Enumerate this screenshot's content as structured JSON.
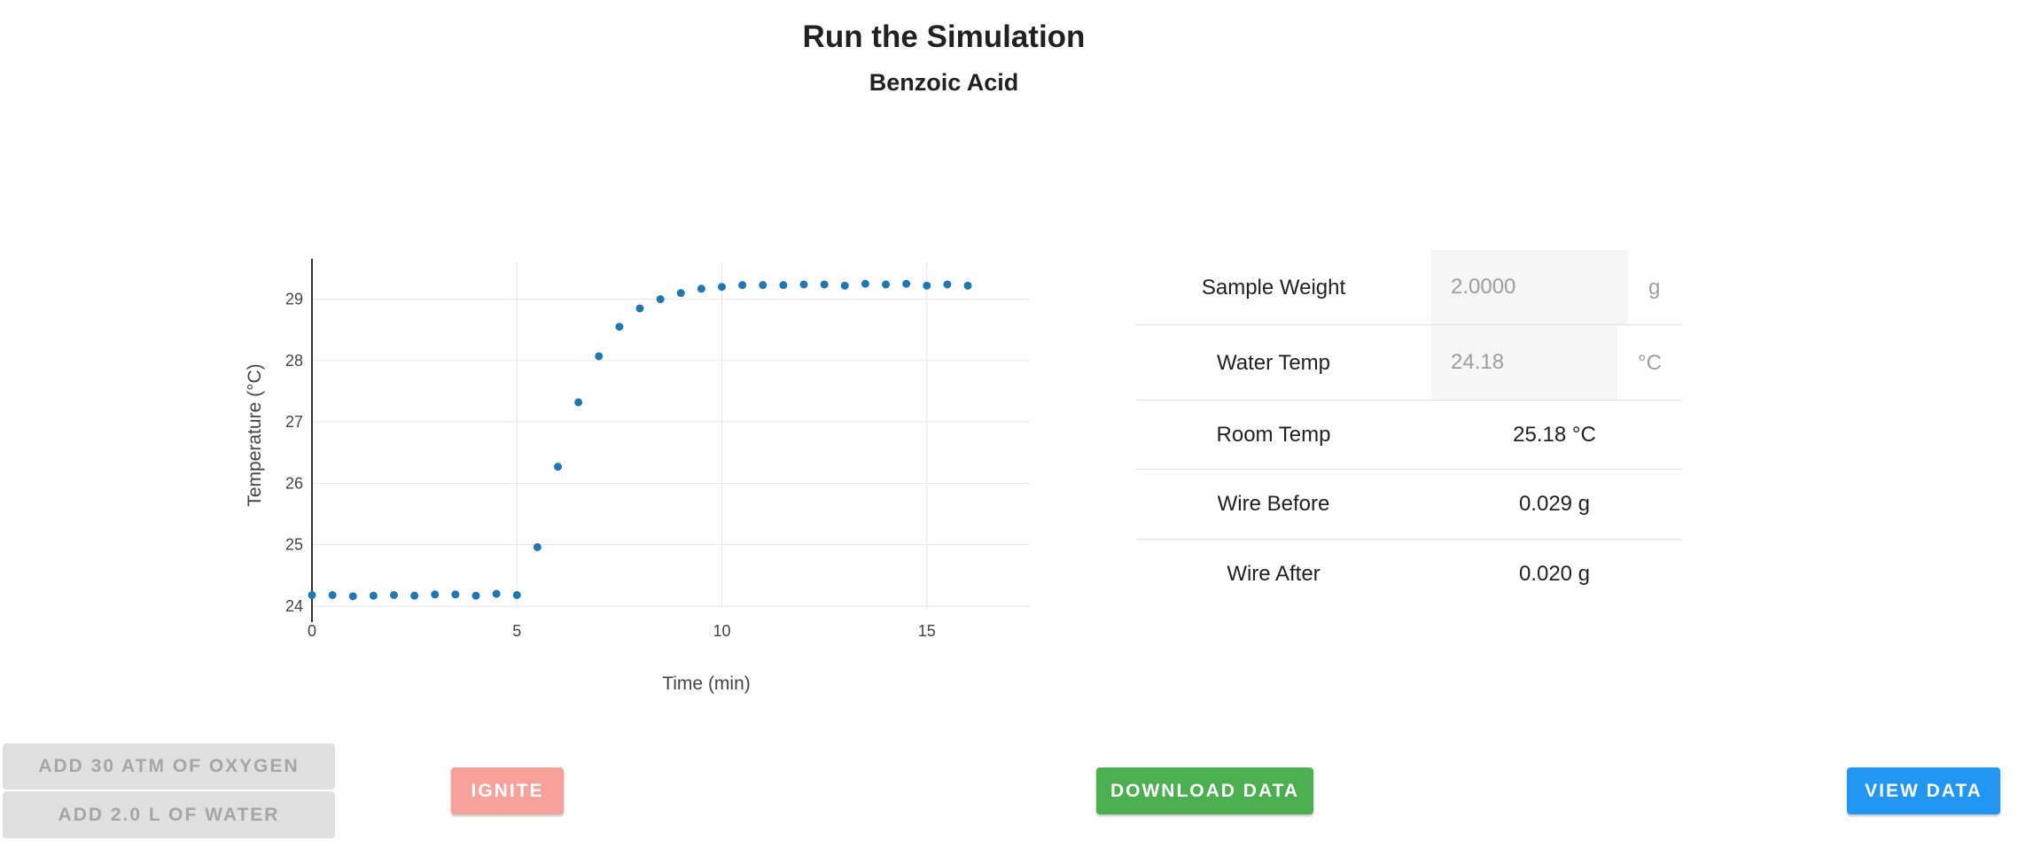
{
  "header": {
    "title": "Run the Simulation",
    "subtitle": "Benzoic Acid"
  },
  "chart_data": {
    "type": "scatter",
    "xlabel": "Time (min)",
    "ylabel": "Temperature (°C)",
    "xlim": [
      0,
      17
    ],
    "ylim": [
      23.97,
      29.6
    ],
    "x_ticks": [
      0,
      5,
      10,
      15
    ],
    "y_ticks": [
      24,
      25,
      26,
      27,
      28,
      29
    ],
    "grid": true,
    "marker_color": "#1f77b4",
    "series": [
      {
        "x": [
          0,
          0.5,
          1,
          1.5,
          2,
          2.5,
          3,
          3.5,
          4,
          4.5,
          5,
          5.5,
          6,
          6.5,
          7,
          7.5,
          8,
          8.5,
          9,
          9.5,
          10,
          10.5,
          11,
          11.5,
          12,
          12.5,
          13,
          13.5,
          14,
          14.5,
          15,
          15.5,
          16
        ],
        "y": [
          24.18,
          24.18,
          24.16,
          24.17,
          24.18,
          24.17,
          24.19,
          24.19,
          24.17,
          24.2,
          24.18,
          24.96,
          26.27,
          27.32,
          28.07,
          28.55,
          28.85,
          29.0,
          29.1,
          29.17,
          29.2,
          29.23,
          29.23,
          29.23,
          29.24,
          29.24,
          29.22,
          29.25,
          29.24,
          29.25,
          29.22,
          29.24,
          29.22
        ]
      }
    ]
  },
  "measurements": {
    "sample_weight": {
      "label": "Sample Weight",
      "value": "2.0000",
      "unit": "g"
    },
    "water_temp": {
      "label": "Water Temp",
      "value": "24.18",
      "unit": "°C"
    },
    "room_temp": {
      "label": "Room Temp",
      "value": "25.18 °C"
    },
    "wire_before": {
      "label": "Wire Before",
      "value": "0.029 g"
    },
    "wire_after": {
      "label": "Wire After",
      "value": "0.020 g"
    }
  },
  "buttons": {
    "add_oxygen": "Add 30 atm of Oxygen",
    "add_water": "Add 2.0 L of Water",
    "ignite": "Ignite",
    "download": "Download Data",
    "view": "View Data"
  },
  "colors": {
    "ignite": "#f8a09a",
    "download": "#4caf50",
    "view": "#2196f3",
    "disabled": "#e0e0e0"
  }
}
